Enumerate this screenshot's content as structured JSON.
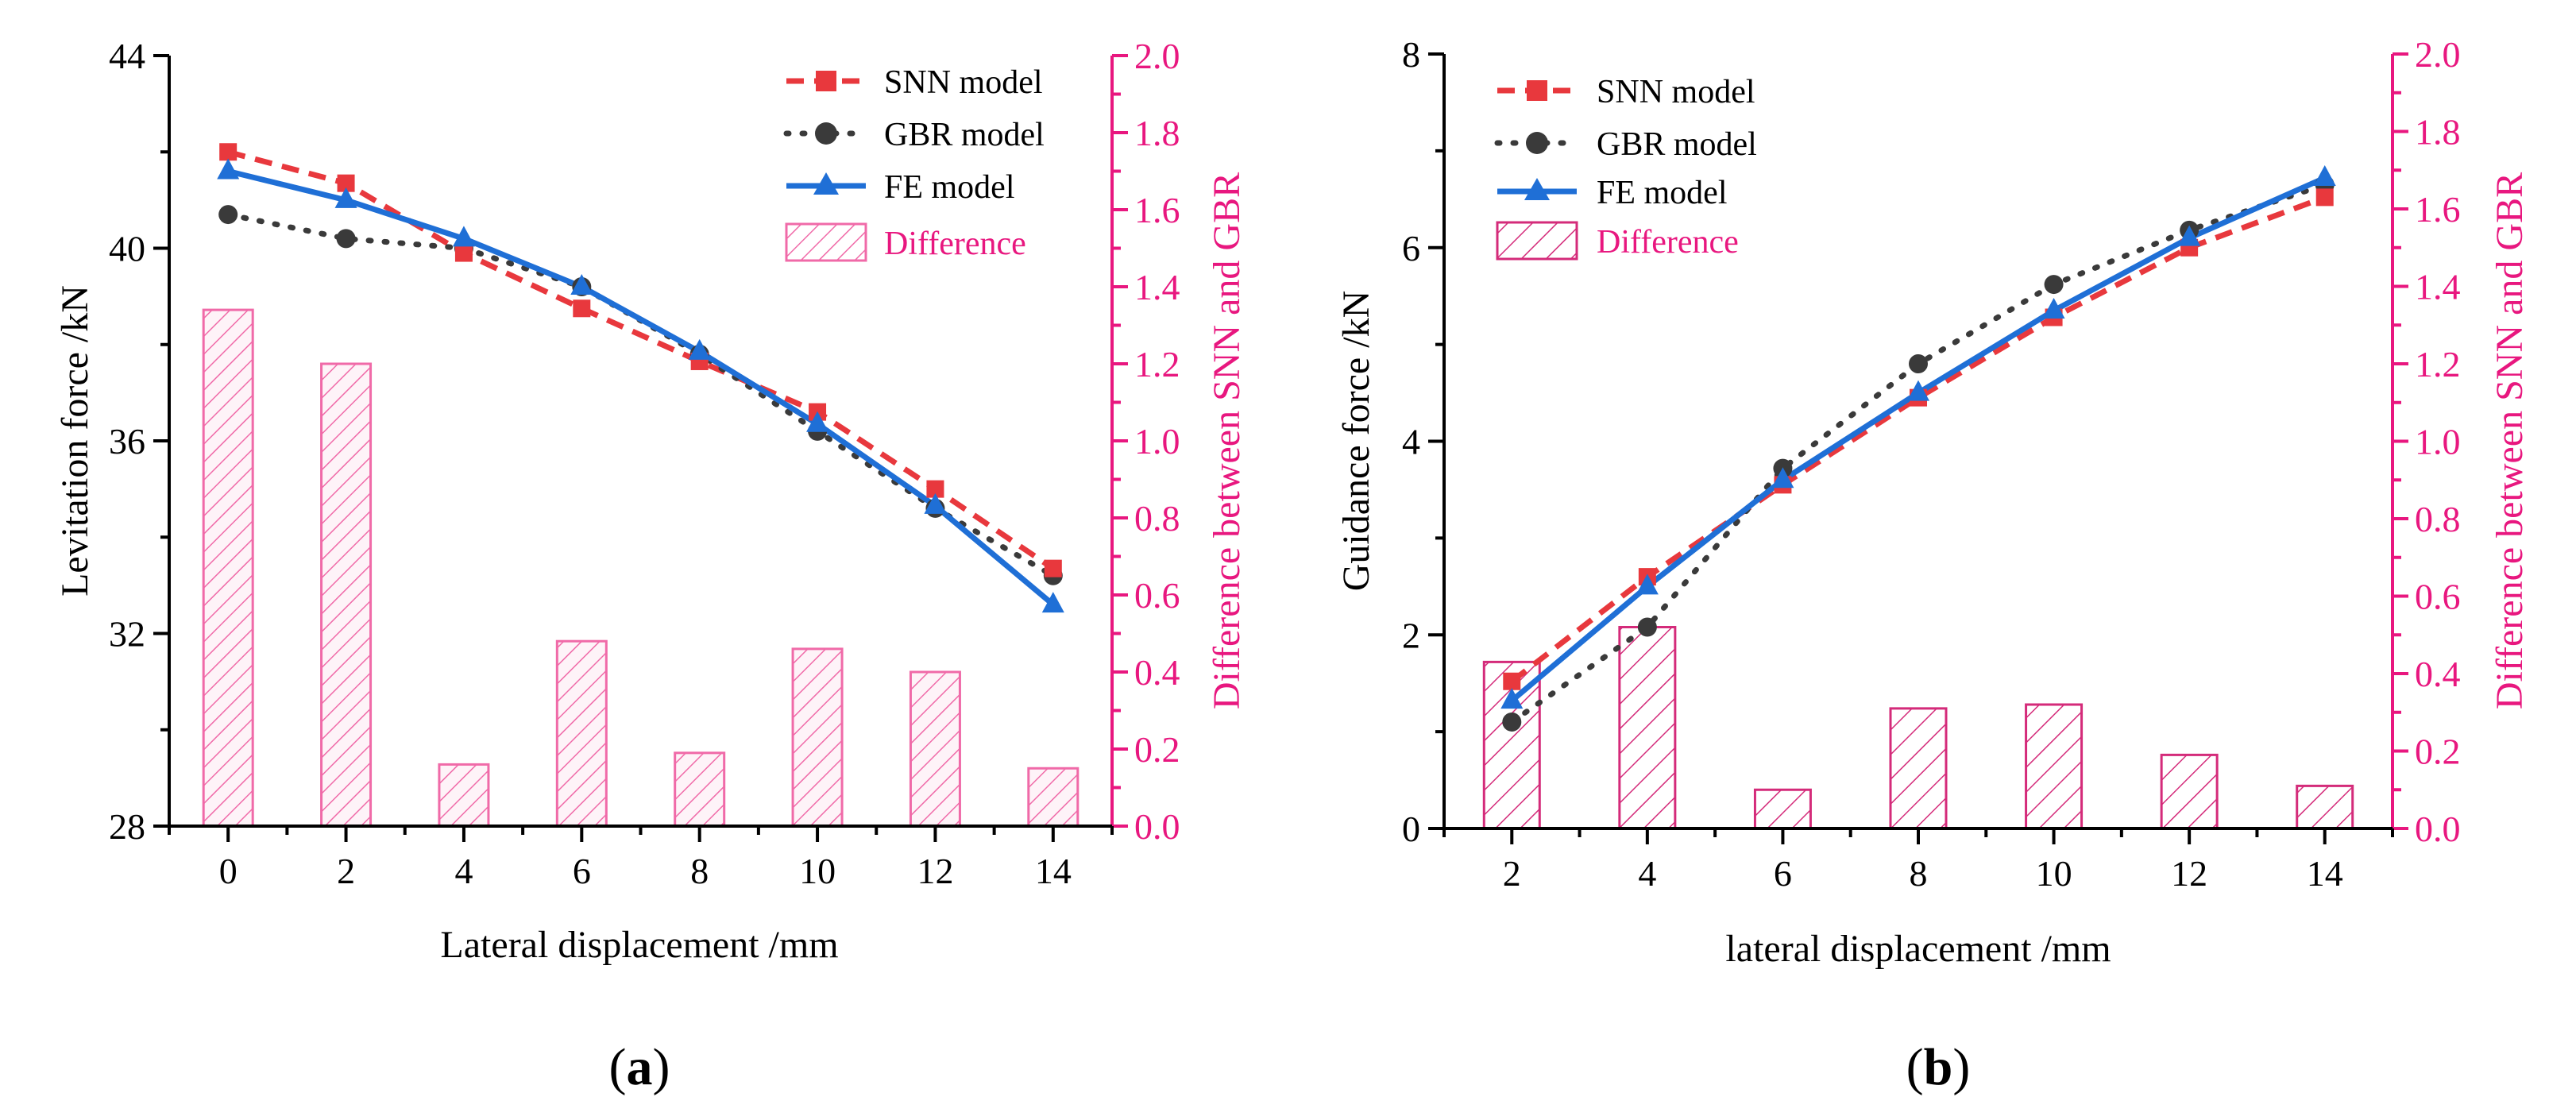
{
  "colors": {
    "axis": "#000000",
    "right_axis": "#e8177f",
    "snn": "#e8383d",
    "gbr": "#3a3a3a",
    "fe": "#1f6fd6",
    "bar_a": "#f06aa8",
    "bar_b": "#d42b7a"
  },
  "legend": {
    "snn": "SNN model",
    "gbr": "GBR model",
    "fe": "FE model",
    "difference": "Difference"
  },
  "chart_data": [
    {
      "id": "a",
      "type": "line+bar",
      "caption": "(a)",
      "caption_open": "(",
      "caption_letter": "a",
      "caption_close": ")",
      "xlabel": "Lateral displacement /mm",
      "ylabel": "Levitation force /kN",
      "y2label": "Difference between SNN and GBR",
      "x": [
        0,
        2,
        4,
        6,
        8,
        10,
        12,
        14
      ],
      "xticks": [
        "0",
        "2",
        "4",
        "6",
        "8",
        "10",
        "12",
        "14"
      ],
      "xlim": [
        -1,
        15
      ],
      "ylim": [
        28,
        44
      ],
      "yticks": [
        "28",
        "32",
        "36",
        "40",
        "44"
      ],
      "y2lim": [
        0,
        2
      ],
      "y2ticks": [
        "0.0",
        "0.2",
        "0.4",
        "0.6",
        "0.8",
        "1.0",
        "1.2",
        "1.4",
        "1.6",
        "1.8",
        "2.0"
      ],
      "series": [
        {
          "name": "SNN model",
          "values": [
            42.0,
            41.35,
            39.9,
            38.75,
            37.65,
            36.6,
            35.0,
            33.35
          ]
        },
        {
          "name": "GBR model",
          "values": [
            40.7,
            40.2,
            40.0,
            39.2,
            37.8,
            36.2,
            34.6,
            33.2
          ]
        },
        {
          "name": "FE model",
          "values": [
            41.6,
            41.0,
            40.2,
            39.2,
            37.85,
            36.35,
            34.65,
            32.6
          ]
        }
      ],
      "difference": [
        1.34,
        1.2,
        0.16,
        0.48,
        0.19,
        0.46,
        0.4,
        0.15
      ]
    },
    {
      "id": "b",
      "type": "line+bar",
      "caption": "(b)",
      "caption_open": "(",
      "caption_letter": "b",
      "caption_close": ")",
      "xlabel": "lateral displacement /mm",
      "ylabel": "Guidance force /kN",
      "y2label": "Difference between SNN and GBR",
      "x": [
        2,
        4,
        6,
        8,
        10,
        12,
        14
      ],
      "xticks": [
        "2",
        "4",
        "6",
        "8",
        "10",
        "12",
        "14"
      ],
      "xlim": [
        1,
        15
      ],
      "ylim": [
        0,
        8
      ],
      "yticks": [
        "0",
        "2",
        "4",
        "6",
        "8"
      ],
      "y2lim": [
        0,
        2
      ],
      "y2ticks": [
        "0.0",
        "0.2",
        "0.4",
        "0.6",
        "0.8",
        "1.0",
        "1.2",
        "1.4",
        "1.6",
        "1.8",
        "2.0"
      ],
      "series": [
        {
          "name": "SNN model",
          "values": [
            1.52,
            2.6,
            3.55,
            4.45,
            5.28,
            6.0,
            6.52
          ]
        },
        {
          "name": "GBR model",
          "values": [
            1.1,
            2.08,
            3.72,
            4.8,
            5.62,
            6.18,
            6.65
          ]
        },
        {
          "name": "FE model",
          "values": [
            1.32,
            2.5,
            3.6,
            4.5,
            5.35,
            6.1,
            6.72
          ]
        }
      ],
      "difference": [
        0.43,
        0.52,
        0.1,
        0.31,
        0.32,
        0.19,
        0.11
      ]
    }
  ]
}
